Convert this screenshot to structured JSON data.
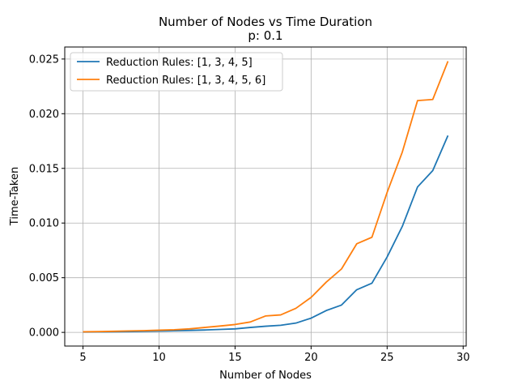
{
  "chart_data": {
    "type": "line",
    "title": "Number of Nodes vs Time Duration",
    "subtitle": "p: 0.1",
    "xlabel": "Number of Nodes",
    "ylabel": "Time-Taken",
    "xlim": [
      3.8,
      30.2
    ],
    "ylim": [
      -0.00125,
      0.0261
    ],
    "xticks": [
      5,
      10,
      15,
      20,
      25,
      30
    ],
    "xtick_labels": [
      "5",
      "10",
      "15",
      "20",
      "25",
      "30"
    ],
    "yticks": [
      0.0,
      0.005,
      0.01,
      0.015,
      0.02,
      0.025
    ],
    "ytick_labels": [
      "0.000",
      "0.005",
      "0.010",
      "0.015",
      "0.020",
      "0.025"
    ],
    "grid": true,
    "legend_position": "top-left",
    "x": [
      5,
      6,
      7,
      8,
      9,
      10,
      11,
      12,
      13,
      14,
      15,
      16,
      17,
      18,
      19,
      20,
      21,
      22,
      23,
      24,
      25,
      26,
      27,
      28,
      29
    ],
    "series": [
      {
        "name": "Reduction Rules: [1, 3, 4, 5]",
        "color": "#1f77b4",
        "values": [
          3e-05,
          4e-05,
          5e-05,
          7e-05,
          0.0001,
          0.00012,
          0.00015,
          0.00018,
          0.00022,
          0.00027,
          0.00032,
          0.00045,
          0.00056,
          0.00065,
          0.00085,
          0.0013,
          0.002,
          0.0025,
          0.0039,
          0.0045,
          0.0069,
          0.0097,
          0.0133,
          0.0148,
          0.018
        ]
      },
      {
        "name": "Reduction Rules: [1, 3, 4, 5, 6]",
        "color": "#ff7f0e",
        "values": [
          5e-05,
          7e-05,
          0.0001,
          0.00013,
          0.00016,
          0.0002,
          0.00024,
          0.00032,
          0.00045,
          0.00058,
          0.00072,
          0.00095,
          0.0015,
          0.0016,
          0.0022,
          0.0032,
          0.0046,
          0.0058,
          0.0081,
          0.0087,
          0.0128,
          0.0165,
          0.0212,
          0.0213,
          0.0248
        ]
      }
    ]
  }
}
